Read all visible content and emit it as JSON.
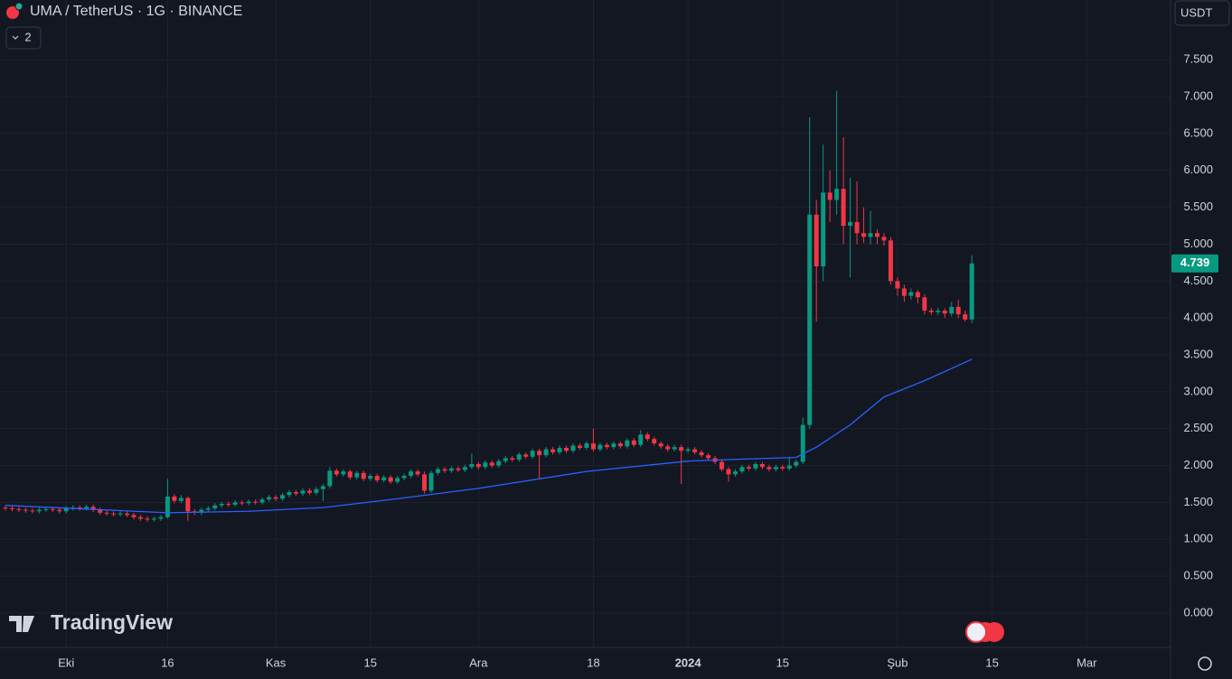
{
  "chart_data": {
    "type": "candlestick",
    "title": "UMA / TetherUS · 1G · BINANCE",
    "indicator_count": "2",
    "currency": "USDT",
    "watermark": "TradingView",
    "up_color": "#089981",
    "down_color": "#f23645",
    "grid": true,
    "xlim": [
      -0.8,
      172.4
    ],
    "ylim": [
      -0.465,
      8.31
    ],
    "xticks": [
      {
        "value": 9,
        "label": "Eki"
      },
      {
        "value": 24,
        "label": "16"
      },
      {
        "value": 40,
        "label": "Kas"
      },
      {
        "value": 54,
        "label": "15"
      },
      {
        "value": 70,
        "label": "Ara"
      },
      {
        "value": 87,
        "label": "18"
      },
      {
        "value": 101,
        "label": "2024"
      },
      {
        "value": 115,
        "label": "15"
      },
      {
        "value": 132,
        "label": "Şub"
      },
      {
        "value": 146,
        "label": "15"
      },
      {
        "value": 160,
        "label": "Mar"
      }
    ],
    "yticks": [
      {
        "value": 0,
        "label": "0.000"
      },
      {
        "value": 0.5,
        "label": "0.500"
      },
      {
        "value": 1,
        "label": "1.000"
      },
      {
        "value": 1.5,
        "label": "1.500"
      },
      {
        "value": 2,
        "label": "2.000"
      },
      {
        "value": 2.5,
        "label": "2.500"
      },
      {
        "value": 3,
        "label": "3.000"
      },
      {
        "value": 3.5,
        "label": "3.500"
      },
      {
        "value": 4,
        "label": "4.000"
      },
      {
        "value": 4.5,
        "label": "4.500"
      },
      {
        "value": 5,
        "label": "5.000"
      },
      {
        "value": 5.5,
        "label": "5.500"
      },
      {
        "value": 6,
        "label": "6.000"
      },
      {
        "value": 6.5,
        "label": "6.500"
      },
      {
        "value": 7,
        "label": "7.000"
      },
      {
        "value": 7.5,
        "label": "7.500"
      }
    ],
    "open": [
      1.43,
      1.42,
      1.41,
      1.4,
      1.39,
      1.38,
      1.4,
      1.41,
      1.4,
      1.38,
      1.42,
      1.43,
      1.42,
      1.44,
      1.4,
      1.36,
      1.35,
      1.34,
      1.35,
      1.33,
      1.3,
      1.28,
      1.27,
      1.28,
      1.3,
      1.58,
      1.52,
      1.56,
      1.38,
      1.36,
      1.4,
      1.42,
      1.46,
      1.48,
      1.47,
      1.5,
      1.49,
      1.51,
      1.5,
      1.54,
      1.57,
      1.55,
      1.6,
      1.64,
      1.62,
      1.66,
      1.63,
      1.68,
      1.72,
      1.93,
      1.88,
      1.92,
      1.84,
      1.9,
      1.82,
      1.86,
      1.8,
      1.84,
      1.78,
      1.83,
      1.86,
      1.92,
      1.88,
      1.66,
      1.9,
      1.95,
      1.93,
      1.96,
      1.94,
      1.98,
      2.02,
      1.98,
      2.04,
      2.0,
      2.06,
      2.1,
      2.08,
      2.15,
      2.12,
      2.2,
      2.14,
      2.22,
      2.18,
      2.24,
      2.2,
      2.27,
      2.24,
      2.3,
      2.22,
      2.28,
      2.25,
      2.3,
      2.26,
      2.34,
      2.28,
      2.42,
      2.36,
      2.3,
      2.26,
      2.22,
      2.25,
      2.2,
      2.22,
      2.18,
      2.14,
      2.1,
      2.05,
      1.95,
      1.88,
      1.92,
      1.98,
      1.96,
      2.02,
      1.98,
      1.95,
      1.98,
      1.96,
      2.0,
      2.05,
      2.55,
      5.4,
      4.7,
      5.7,
      5.6,
      5.75,
      5.25,
      5.3,
      5.15,
      5.1,
      5.15,
      5.1,
      5.05,
      4.5,
      4.4,
      4.3,
      4.35,
      4.28,
      4.1,
      4.08,
      4.1,
      4.06,
      4.15,
      4.05,
      3.98
    ],
    "high": [
      1.46,
      1.45,
      1.44,
      1.43,
      1.42,
      1.43,
      1.44,
      1.44,
      1.43,
      1.45,
      1.46,
      1.46,
      1.47,
      1.47,
      1.43,
      1.39,
      1.38,
      1.38,
      1.38,
      1.36,
      1.33,
      1.31,
      1.31,
      1.33,
      1.82,
      1.61,
      1.6,
      1.58,
      1.41,
      1.43,
      1.45,
      1.49,
      1.51,
      1.51,
      1.53,
      1.53,
      1.54,
      1.54,
      1.57,
      1.6,
      1.6,
      1.63,
      1.67,
      1.67,
      1.69,
      1.69,
      1.71,
      1.75,
      1.98,
      1.96,
      1.95,
      1.95,
      1.93,
      1.93,
      1.89,
      1.89,
      1.87,
      1.87,
      1.86,
      1.89,
      1.95,
      1.95,
      1.92,
      1.93,
      1.98,
      1.98,
      1.99,
      1.99,
      2.01,
      2.16,
      2.05,
      2.07,
      2.07,
      2.09,
      2.13,
      2.13,
      2.18,
      2.18,
      2.23,
      2.23,
      2.25,
      2.25,
      2.27,
      2.27,
      2.3,
      2.3,
      2.33,
      2.5,
      2.31,
      2.31,
      2.33,
      2.33,
      2.37,
      2.37,
      2.48,
      2.45,
      2.39,
      2.33,
      2.29,
      2.28,
      2.28,
      2.25,
      2.25,
      2.21,
      2.17,
      2.13,
      2.08,
      1.98,
      1.95,
      2.01,
      2.01,
      2.05,
      2.05,
      2.01,
      2.01,
      2.01,
      2.12,
      2.08,
      2.65,
      6.72,
      5.6,
      6.35,
      6.0,
      7.08,
      6.45,
      5.9,
      5.85,
      5.5,
      5.45,
      5.2,
      5.15,
      5.1,
      4.55,
      4.45,
      4.4,
      4.38,
      4.32,
      4.14,
      4.14,
      4.13,
      4.22,
      4.25,
      4.1,
      4.85
    ],
    "low": [
      1.39,
      1.38,
      1.37,
      1.36,
      1.35,
      1.35,
      1.37,
      1.37,
      1.35,
      1.35,
      1.39,
      1.39,
      1.39,
      1.37,
      1.33,
      1.32,
      1.31,
      1.31,
      1.3,
      1.27,
      1.25,
      1.24,
      1.24,
      1.25,
      1.28,
      1.49,
      1.49,
      1.25,
      1.33,
      1.33,
      1.37,
      1.39,
      1.43,
      1.44,
      1.44,
      1.46,
      1.46,
      1.47,
      1.47,
      1.51,
      1.52,
      1.52,
      1.57,
      1.59,
      1.59,
      1.6,
      1.6,
      1.52,
      1.69,
      1.85,
      1.85,
      1.81,
      1.81,
      1.79,
      1.79,
      1.77,
      1.77,
      1.75,
      1.75,
      1.8,
      1.83,
      1.85,
      1.62,
      1.63,
      1.87,
      1.9,
      1.9,
      1.91,
      1.91,
      1.95,
      1.95,
      1.95,
      1.97,
      1.97,
      2.03,
      2.05,
      2.05,
      2.09,
      2.09,
      1.82,
      2.11,
      2.15,
      2.15,
      2.17,
      2.17,
      2.21,
      2.21,
      2.19,
      2.19,
      2.22,
      2.22,
      2.23,
      2.23,
      2.25,
      2.25,
      2.33,
      2.27,
      2.23,
      2.19,
      2.19,
      1.75,
      2.17,
      2.15,
      2.11,
      2.07,
      2.02,
      1.92,
      1.78,
      1.85,
      1.89,
      1.93,
      1.93,
      1.95,
      1.92,
      1.92,
      1.93,
      1.93,
      1.97,
      2.02,
      2.5,
      3.95,
      4.5,
      5.3,
      5.4,
      5.0,
      4.55,
      5.0,
      5.02,
      5.0,
      5.0,
      4.98,
      4.45,
      4.3,
      4.22,
      4.25,
      4.2,
      4.05,
      4.04,
      4.04,
      4.0,
      4.02,
      4.0,
      3.95,
      3.93
    ],
    "close": [
      1.42,
      1.41,
      1.4,
      1.39,
      1.38,
      1.4,
      1.41,
      1.4,
      1.38,
      1.42,
      1.43,
      1.42,
      1.44,
      1.4,
      1.36,
      1.35,
      1.34,
      1.35,
      1.33,
      1.3,
      1.28,
      1.27,
      1.28,
      1.3,
      1.58,
      1.52,
      1.56,
      1.38,
      1.36,
      1.4,
      1.42,
      1.46,
      1.48,
      1.47,
      1.5,
      1.49,
      1.51,
      1.5,
      1.54,
      1.57,
      1.55,
      1.6,
      1.64,
      1.62,
      1.66,
      1.63,
      1.68,
      1.72,
      1.93,
      1.88,
      1.92,
      1.84,
      1.9,
      1.82,
      1.86,
      1.8,
      1.84,
      1.78,
      1.83,
      1.86,
      1.92,
      1.88,
      1.66,
      1.9,
      1.95,
      1.93,
      1.96,
      1.94,
      1.98,
      2.02,
      1.98,
      2.04,
      2.0,
      2.06,
      2.1,
      2.08,
      2.15,
      2.12,
      2.2,
      2.14,
      2.22,
      2.18,
      2.24,
      2.2,
      2.27,
      2.24,
      2.3,
      2.22,
      2.28,
      2.25,
      2.3,
      2.26,
      2.34,
      2.28,
      2.42,
      2.36,
      2.3,
      2.26,
      2.22,
      2.25,
      2.2,
      2.22,
      2.18,
      2.14,
      2.1,
      2.05,
      1.95,
      1.88,
      1.92,
      1.98,
      1.96,
      2.02,
      1.98,
      1.95,
      1.98,
      1.96,
      2.0,
      2.05,
      2.55,
      5.4,
      4.7,
      5.7,
      5.6,
      5.75,
      5.25,
      5.3,
      5.15,
      5.1,
      5.15,
      5.1,
      5.05,
      4.5,
      4.4,
      4.3,
      4.35,
      4.28,
      4.1,
      4.08,
      4.1,
      4.06,
      4.15,
      4.05,
      3.98,
      4.739
    ],
    "ma": {
      "color": "#2962ff",
      "x": [
        0,
        12,
        24,
        36,
        47,
        58,
        70,
        86,
        101,
        110,
        117,
        120,
        125,
        130,
        136,
        143
      ],
      "values": [
        1.46,
        1.41,
        1.36,
        1.38,
        1.43,
        1.55,
        1.69,
        1.92,
        2.06,
        2.09,
        2.11,
        2.25,
        2.55,
        2.93,
        3.15,
        3.44
      ]
    }
  }
}
